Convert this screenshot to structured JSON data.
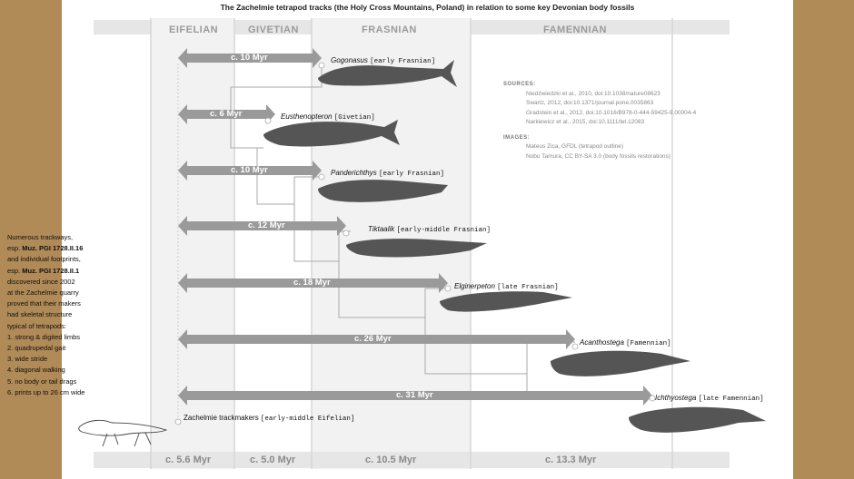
{
  "title": "The Zachelmie tetrapod tracks (the Holy Cross Mountains, Poland) in relation to some key Devonian body fossils",
  "stages": [
    {
      "name": "EIFELIAN",
      "duration": "c. 5.6 Myr"
    },
    {
      "name": "GIVETIAN",
      "duration": "c. 5.0 Myr"
    },
    {
      "name": "FRASNIAN",
      "duration": "c. 10.5 Myr"
    },
    {
      "name": "FAMENNIAN",
      "duration": "c. 13.3 Myr"
    }
  ],
  "taxa": [
    {
      "name": "Gogonasus",
      "age": "[early Frasnian]",
      "gap": "c. 10 Myr"
    },
    {
      "name": "Eusthenopteron",
      "age": "[Givetian]",
      "gap": "c. 6 Myr"
    },
    {
      "name": "Panderichthys",
      "age": "[early Frasnian]",
      "gap": "c. 10 Myr"
    },
    {
      "name": "Tiktaalik",
      "age": "[early-middle Frasnian]",
      "gap": "c. 12 Myr"
    },
    {
      "name": "Elginerpeton",
      "age": "[late Frasnian]",
      "gap": "c. 18 Myr"
    },
    {
      "name": "Acanthostega",
      "age": "[Famennian]",
      "gap": "c. 26 Myr"
    },
    {
      "name": "Ichthyostega",
      "age": "[late Famennian]",
      "gap": "c. 31 Myr"
    }
  ],
  "trackmakers": {
    "name": "Zachelmie trackmakers",
    "age": "[early-middle Eifelian]"
  },
  "sources": {
    "heading": "SOURCES:",
    "items": [
      "Niedźwiedzki et al., 2010, doi:10.1038/nature08623",
      "Swartz, 2012, doi:10.1371/journal.pone.0035863",
      "Gradstein et al., 2012, doi:10.1016/B978-0-444-59425-9.00004-4",
      "Narkiewicz et al., 2015, doi:10.1111/let.12083"
    ]
  },
  "images": {
    "heading": "IMAGES:",
    "items": [
      "Mateus Zica, GFDL (tetrapod outline)",
      "Nobu Tamura, CC BY-SA 3.0 (body fossils restorations)"
    ]
  },
  "note": {
    "l1": "Numerous trackways,",
    "l2a": "esp. ",
    "l2b": "Muz. PGI 1728.II.16",
    "l3": "and individual footprints,",
    "l4a": "esp. ",
    "l4b": "Muz. PGI 1728.II.1",
    "l5": "discovered since 2002",
    "l6": "at the Zachelmie quarry",
    "l7": "proved that their makers",
    "l8": "had skeletal structure",
    "l9": "typical of tetrapods:",
    "list": [
      "1. strong & digited limbs",
      "2. quadrupedal gait",
      "3. wide stride",
      "4. diagonal walking",
      "5. no body or tail drags",
      "6. prints up to 26 cm wide"
    ]
  },
  "colors": {
    "background": "#b08a57",
    "arrow": "#9a9a9a",
    "stage_band": "#f2f2f2",
    "animal": "#555555"
  }
}
